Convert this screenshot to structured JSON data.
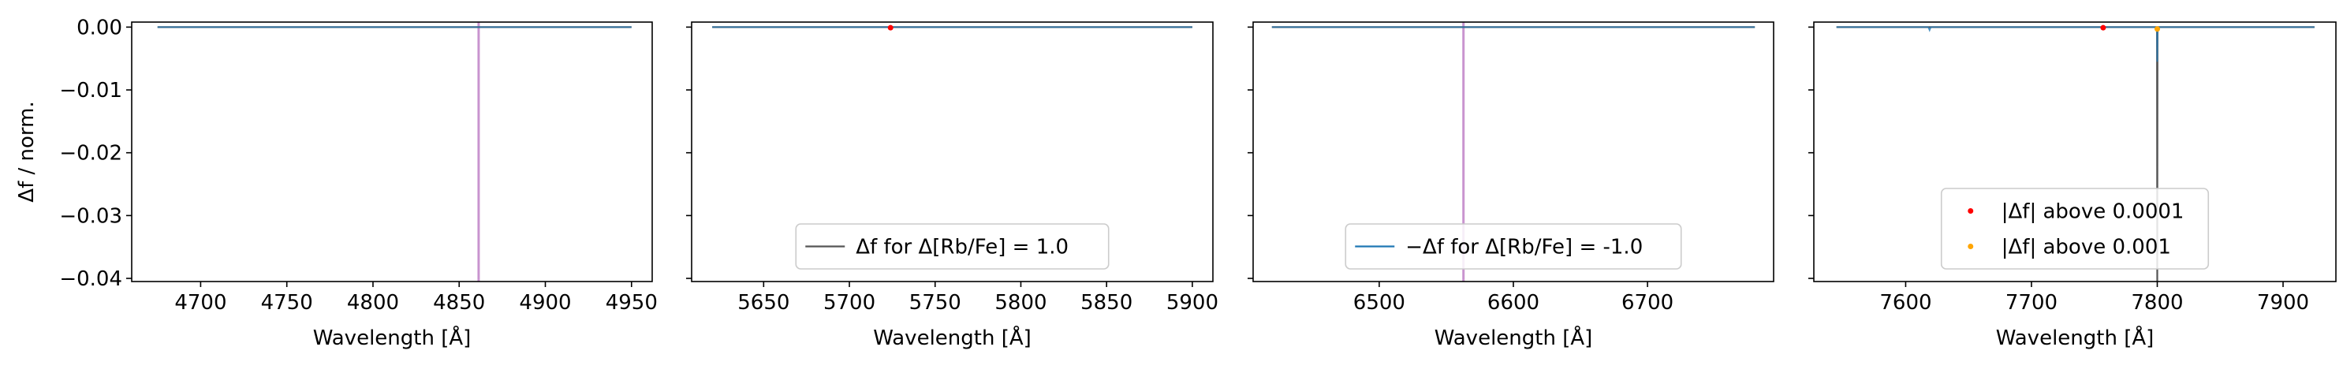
{
  "chart_data": [
    {
      "type": "line",
      "panel": 1,
      "xlabel": "Wavelength [Å]",
      "ylabel": "Δf / norm.",
      "xlim": [
        4660,
        4962
      ],
      "ylim": [
        -0.0405,
        0.0008
      ],
      "xticks": [
        4700,
        4750,
        4800,
        4850,
        4900,
        4950
      ],
      "xtick_labels": [
        "4700",
        "4750",
        "4800",
        "4850",
        "4900",
        "4950"
      ],
      "yticks": [
        0.0,
        -0.01,
        -0.02,
        -0.03,
        -0.04
      ],
      "ytick_labels": [
        "0.00",
        "−0.01",
        "−0.02",
        "−0.03",
        "−0.04"
      ],
      "vlines": [
        {
          "x": 4861.3,
          "color": "#c994cf"
        }
      ],
      "series": [
        {
          "role": "delta_f",
          "color": "#555555",
          "x": [
            4675,
            4950
          ],
          "y": [
            0.0,
            0.0
          ]
        },
        {
          "role": "neg_delta_f",
          "color": "#1f77b4",
          "x": [
            4675,
            4950
          ],
          "y": [
            0.0,
            0.0
          ]
        }
      ],
      "points": [],
      "legend": null
    },
    {
      "type": "line",
      "panel": 2,
      "xlabel": "Wavelength [Å]",
      "xlim": [
        5608,
        5912
      ],
      "ylim": [
        -0.0405,
        0.0008
      ],
      "xticks": [
        5650,
        5700,
        5750,
        5800,
        5850,
        5900
      ],
      "xtick_labels": [
        "5650",
        "5700",
        "5750",
        "5800",
        "5850",
        "5900"
      ],
      "vlines": [],
      "series": [
        {
          "role": "delta_f",
          "color": "#555555",
          "x": [
            5620,
            5900
          ],
          "y": [
            0.0,
            0.0
          ]
        },
        {
          "role": "neg_delta_f",
          "color": "#1f77b4",
          "x": [
            5620,
            5900
          ],
          "y": [
            0.0,
            0.0
          ]
        }
      ],
      "points": [
        {
          "x": 5724,
          "y": -0.0001,
          "color": "#ff0000"
        }
      ],
      "legend": {
        "placement": "lower center",
        "entries": [
          {
            "label": "Δf for Δ[Rb/Fe] = 1.0",
            "kind": "line",
            "color": "#555555"
          }
        ]
      }
    },
    {
      "type": "line",
      "panel": 3,
      "xlabel": "Wavelength [Å]",
      "xlim": [
        6406,
        6794
      ],
      "ylim": [
        -0.0405,
        0.0008
      ],
      "xticks": [
        6500,
        6600,
        6700
      ],
      "xtick_labels": [
        "6500",
        "6600",
        "6700"
      ],
      "vlines": [
        {
          "x": 6562.8,
          "color": "#c994cf"
        }
      ],
      "series": [
        {
          "role": "delta_f",
          "color": "#555555",
          "x": [
            6420,
            6780
          ],
          "y": [
            0.0,
            0.0
          ]
        },
        {
          "role": "neg_delta_f",
          "color": "#1f77b4",
          "x": [
            6420,
            6780
          ],
          "y": [
            0.0,
            0.0
          ]
        }
      ],
      "points": [],
      "legend": {
        "placement": "lower center",
        "entries": [
          {
            "label": "−Δf for Δ[Rb/Fe] = -1.0",
            "kind": "line",
            "color": "#1f77b4"
          }
        ]
      }
    },
    {
      "type": "line",
      "panel": 4,
      "xlabel": "Wavelength [Å]",
      "xlim": [
        7527,
        7942
      ],
      "ylim": [
        -0.0405,
        0.0008
      ],
      "xticks": [
        7600,
        7700,
        7800,
        7900
      ],
      "xtick_labels": [
        "7600",
        "7700",
        "7800",
        "7900"
      ],
      "vlines": [],
      "series": [
        {
          "role": "delta_f",
          "color": "#555555",
          "x": [
            7545,
            7799.8,
            7800.0,
            7800.2,
            7925
          ],
          "y": [
            0.0,
            0.0,
            -0.0405,
            0.0,
            0.0
          ]
        },
        {
          "role": "neg_delta_f",
          "color": "#1f77b4",
          "x": [
            7545,
            7618,
            7619,
            7620,
            7799.8,
            7800.0,
            7800.2,
            7925
          ],
          "y": [
            0.0,
            0.0,
            -0.0005,
            0.0,
            0.0,
            -0.0055,
            0.0,
            0.0
          ]
        }
      ],
      "points": [
        {
          "x": 7757,
          "y": -0.0001,
          "color": "#ff0000"
        },
        {
          "x": 7800,
          "y": -0.0003,
          "color": "#ffa500"
        }
      ],
      "legend": {
        "placement": "lower center",
        "entries": [
          {
            "label": "|Δf| above 0.0001",
            "kind": "dot",
            "color": "#ff0000"
          },
          {
            "label": "|Δf| above 0.001",
            "kind": "dot",
            "color": "#ffa500"
          }
        ]
      }
    }
  ]
}
